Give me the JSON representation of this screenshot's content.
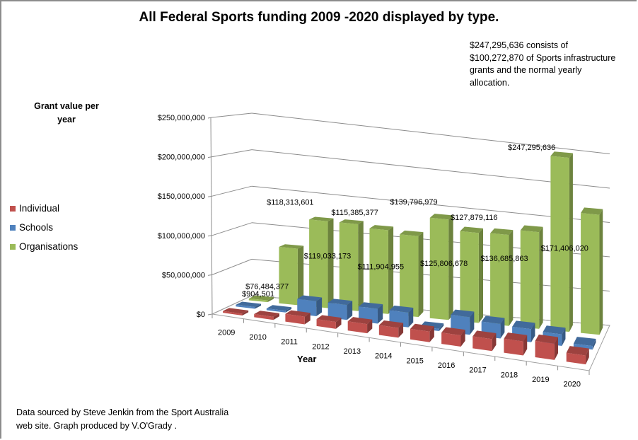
{
  "chart_data": {
    "type": "bar",
    "subtype": "3d-clustered-depth",
    "title": "All Federal Sports funding 2009 -2020 displayed by type.",
    "annotation": "$247,295,636 consists of $100,272,870 of Sports infrastructure grants and the normal yearly allocation.",
    "xlabel": "Year",
    "ylabel": "Grant value per year",
    "ylim": [
      0,
      250000000
    ],
    "yticks": [
      0,
      50000000,
      100000000,
      150000000,
      200000000,
      250000000
    ],
    "ytick_labels": [
      "$0",
      "$50,000,000",
      "$100,000,000",
      "$150,000,000",
      "$200,000,000",
      "$250,000,000"
    ],
    "grid": true,
    "legend_position": "left",
    "categories": [
      "2009",
      "2010",
      "2011",
      "2012",
      "2013",
      "2014",
      "2015",
      "2016",
      "2017",
      "2018",
      "2019",
      "2020"
    ],
    "series": [
      {
        "name": "Individual",
        "color": "#c0504d",
        "values": [
          1000000,
          4000000,
          10000000,
          9000000,
          12000000,
          13000000,
          14000000,
          15000000,
          16000000,
          19000000,
          22000000,
          12000000
        ],
        "data_labels": [
          "",
          "",
          "",
          "",
          "",
          "",
          "",
          "",
          "",
          "",
          "",
          ""
        ]
      },
      {
        "name": "Schools",
        "color": "#4f81bd",
        "values": [
          500000,
          500000,
          20000000,
          20000000,
          20000000,
          20000000,
          3000000,
          24000000,
          20000000,
          18000000,
          16000000,
          5000000
        ],
        "data_labels": [
          "",
          "",
          "",
          "",
          "",
          "",
          "",
          "",
          "",
          "",
          "",
          ""
        ]
      },
      {
        "name": "Organisations",
        "color": "#9bbb59",
        "values": [
          904501,
          76484377,
          118313601,
          119033173,
          115385377,
          111904955,
          139796979,
          125806678,
          127879116,
          136685863,
          247295636,
          171406020
        ],
        "data_labels": [
          "$904,501",
          "$76,484,377",
          "$118,313,601",
          "$119,033,173",
          "$115,385,377",
          "$111,904,955",
          "$139,796,979",
          "$125,806,678",
          "$127,879,116",
          "$136,685,863",
          "$247,295,636",
          "$171,406,020"
        ]
      }
    ]
  },
  "footer": {
    "source_line1": "Data sourced by Steve Jenkin from the Sport Australia",
    "source_line2": "web site. Graph produced by V.O'Grady ."
  }
}
